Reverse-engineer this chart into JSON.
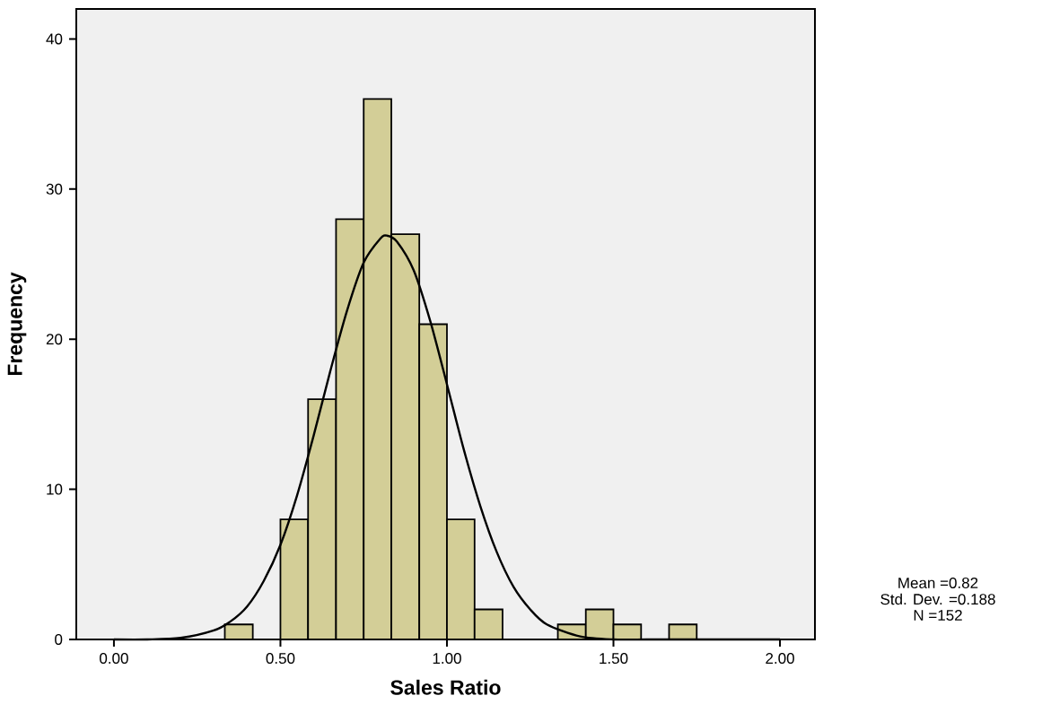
{
  "chart_data": {
    "type": "histogram",
    "xlabel": "Sales Ratio",
    "ylabel": "Frequency",
    "color": "#d3ce97",
    "bins": [
      0.333,
      0.417,
      0.5,
      0.583,
      0.667,
      0.75,
      0.833,
      0.917,
      1.0,
      1.083,
      1.167,
      1.25,
      1.333,
      1.417,
      1.5,
      1.583,
      1.667,
      1.75
    ],
    "values": [
      1,
      0,
      8,
      16,
      28,
      36,
      27,
      21,
      8,
      2,
      0,
      0,
      1,
      2,
      1,
      0,
      1
    ],
    "series": [
      {
        "type": "line",
        "color": "#000000",
        "x": [
          0,
          0.1,
          0.2,
          0.3,
          0.35,
          0.4,
          0.45,
          0.5,
          0.55,
          0.6,
          0.65,
          0.7,
          0.75,
          0.8,
          0.82,
          0.85,
          0.9,
          0.95,
          1.0,
          1.05,
          1.1,
          1.15,
          1.2,
          1.25,
          1.3,
          1.4,
          1.5,
          1.6,
          1.7,
          2.0
        ],
        "values": [
          0,
          0,
          0.1,
          0.6,
          1.2,
          2.2,
          3.9,
          6.3,
          9.6,
          13.6,
          17.9,
          21.9,
          25.1,
          26.7,
          26.9,
          26.5,
          24.6,
          21.2,
          17.0,
          12.7,
          8.9,
          5.8,
          3.5,
          2.0,
          1.0,
          0.2,
          0,
          0,
          0,
          0
        ]
      }
    ],
    "xlim": [
      -0.113,
      2.105
    ],
    "ylim": [
      0,
      42
    ],
    "xticks": [
      {
        "value": 0,
        "label": "0.00"
      },
      {
        "value": 0.5,
        "label": "0.50"
      },
      {
        "value": 1,
        "label": "1.00"
      },
      {
        "value": 1.5,
        "label": "1.50"
      },
      {
        "value": 2,
        "label": "2.00"
      }
    ],
    "yticks": [
      0,
      10,
      20,
      30,
      40
    ],
    "grid": false,
    "annotations": [
      "Mean =0.82",
      "Std. Dev. =0.188",
      "N =152"
    ]
  }
}
